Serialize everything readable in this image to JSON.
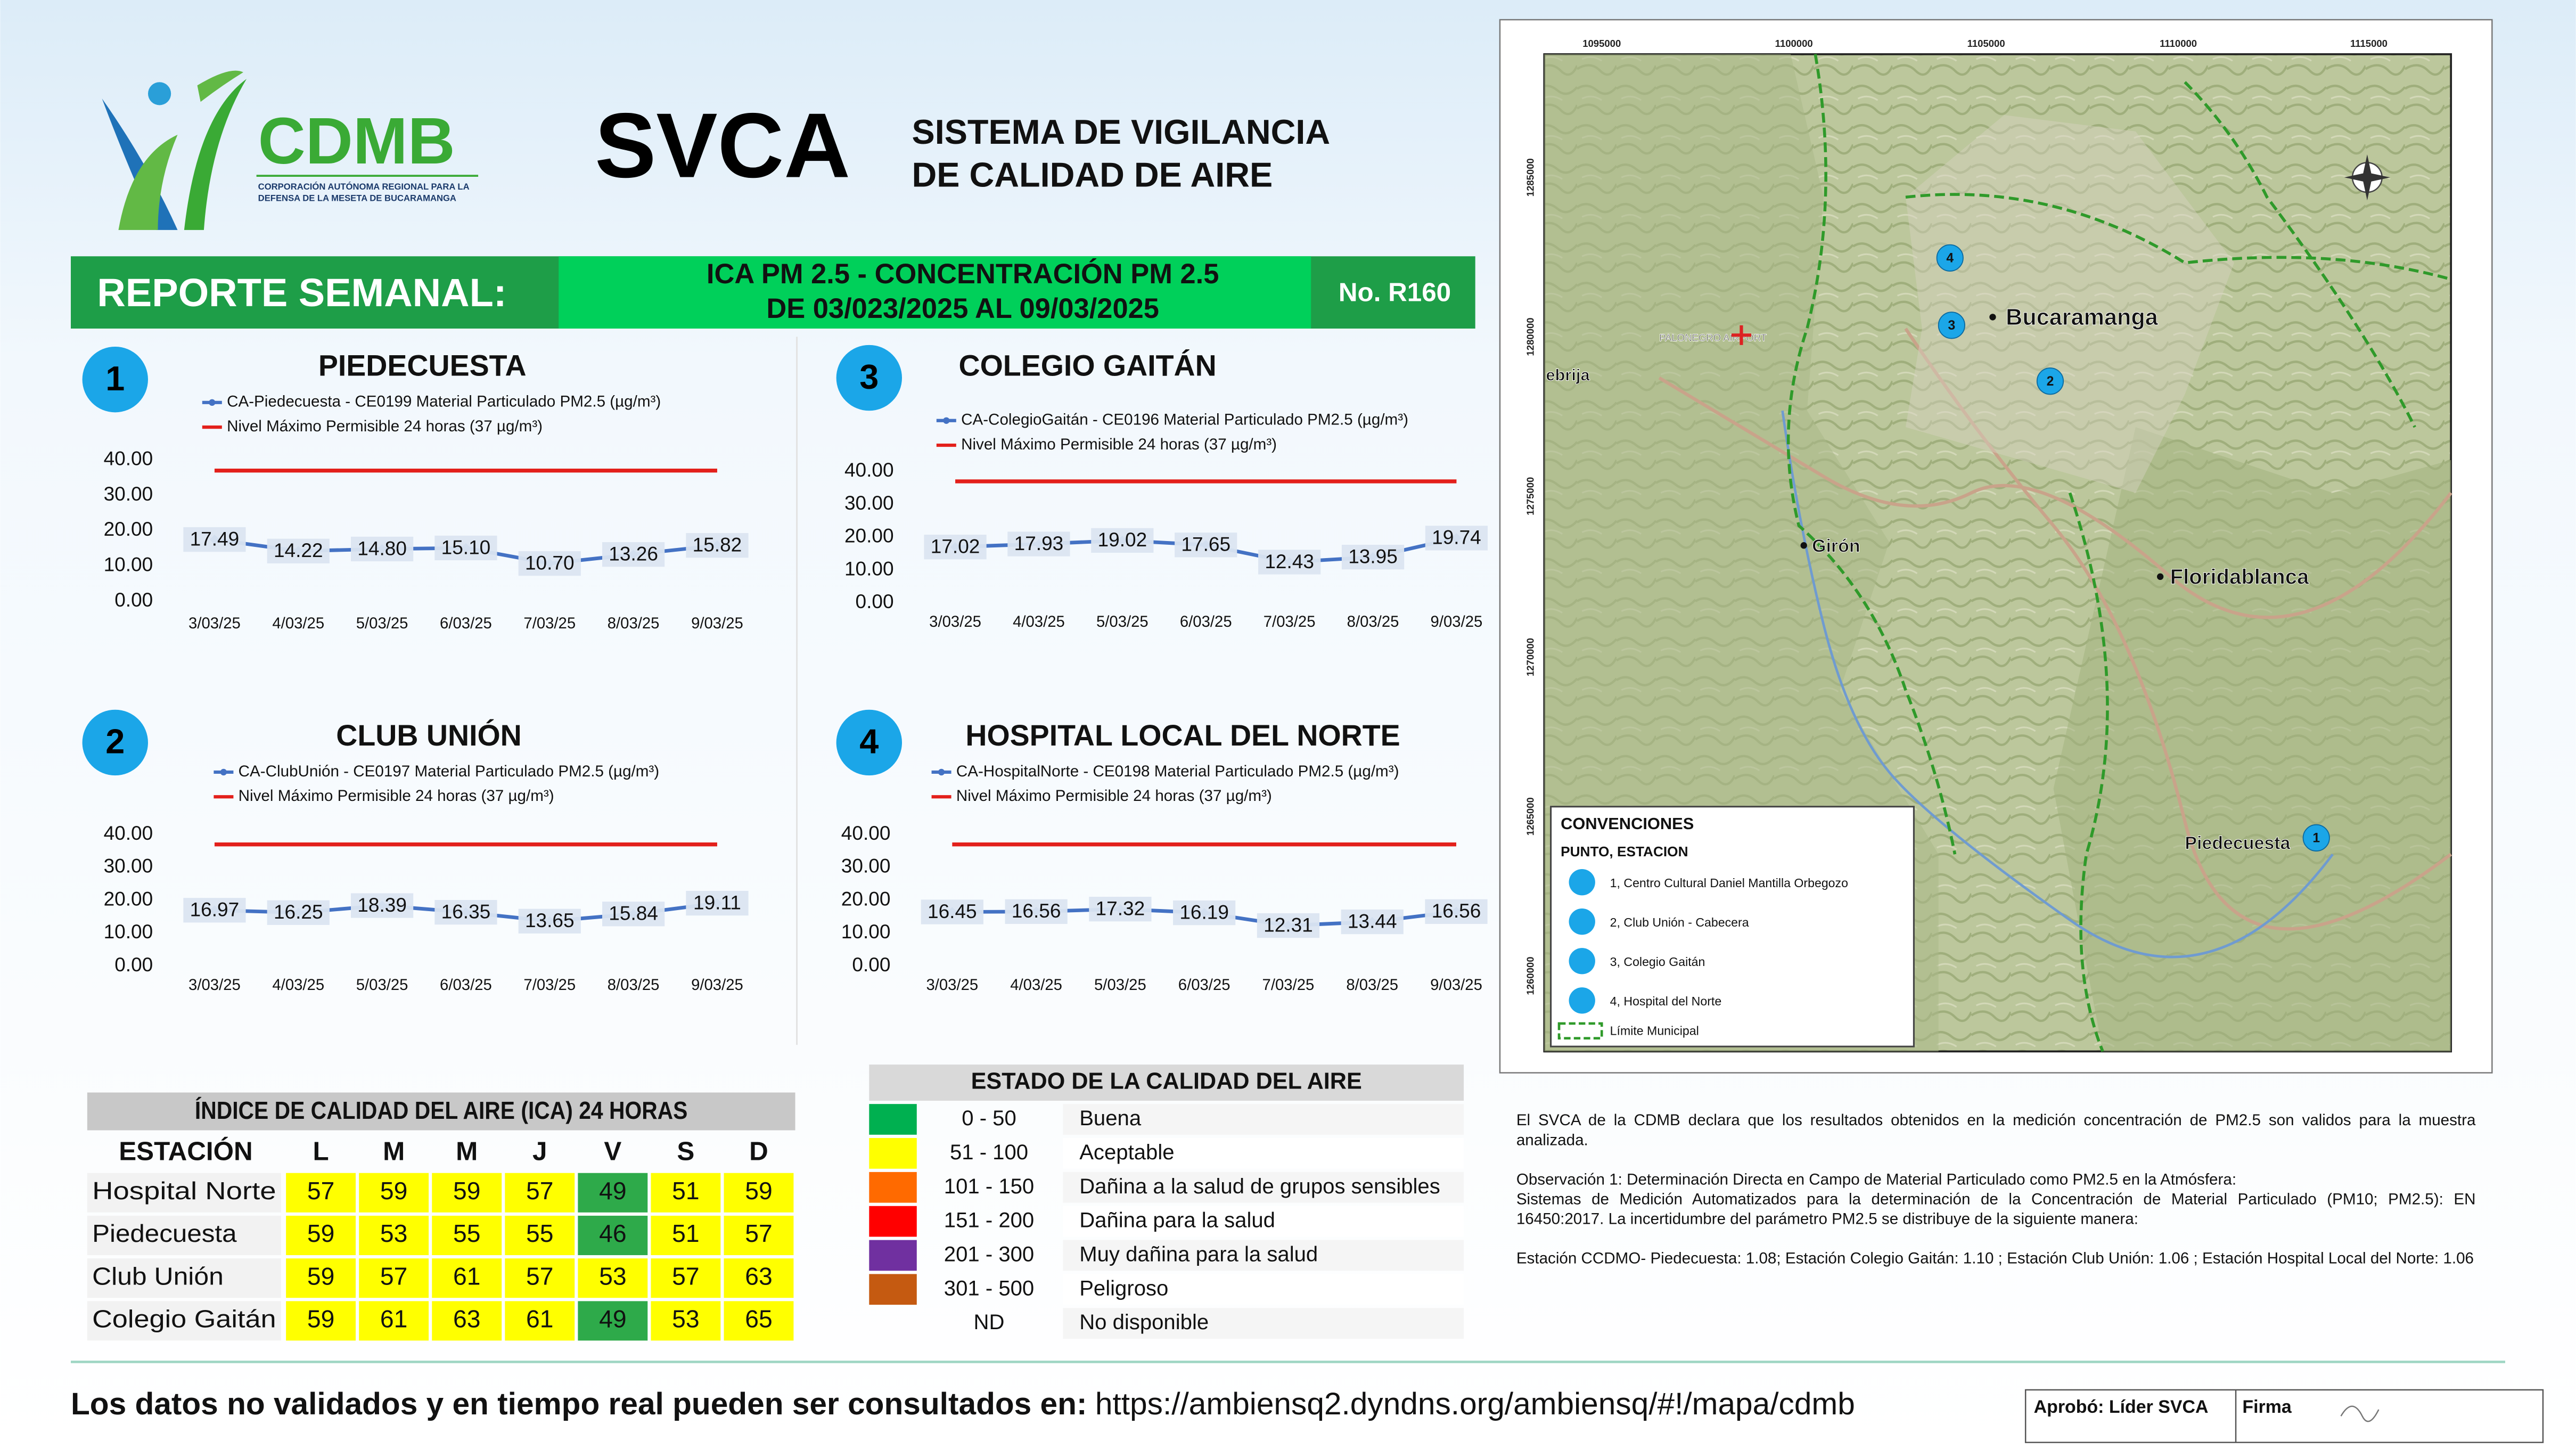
{
  "header": {
    "logo": "CDMB",
    "logo_subtitle": [
      "CORPORACIÓN AUTÓNOMA REGIONAL PARA LA",
      "DEFENSA DE LA MESETA DE BUCARAMANGA"
    ],
    "title": "SVCA",
    "subtitle": [
      "SISTEMA DE VIGILANCIA",
      "DE CALIDAD DE AIRE"
    ]
  },
  "banner": {
    "label": "REPORTE SEMANAL:",
    "lines": [
      "ICA PM 2.5 - CONCENTRACIÓN PM 2.5",
      "DE 03/023/2025 AL 09/03/2025"
    ],
    "number": "No. R160"
  },
  "chart_data": [
    {
      "type": "line",
      "badge": "1",
      "title": "PIEDECUESTA",
      "categories": [
        "3/03/25",
        "4/03/25",
        "5/03/25",
        "6/03/25",
        "7/03/25",
        "8/03/25",
        "9/03/25"
      ],
      "series": [
        {
          "name": "CA-Piedecuesta - CE0199 Material Particulado PM2.5 (µg/m³)",
          "color": "#4472c4",
          "markers": true,
          "data_labels": true,
          "values": [
            17.49,
            14.22,
            14.8,
            15.1,
            10.7,
            13.26,
            15.82
          ],
          "value_labels": [
            "17.49",
            "14.22",
            "14.80",
            "15.10",
            "10.70",
            "13.26",
            "15.82"
          ]
        },
        {
          "name": "Nivel Máximo Permisible 24 horas (37 µg/m³)",
          "color": "#e3201b",
          "values": [
            37,
            37,
            37,
            37,
            37,
            37,
            37
          ]
        }
      ],
      "ylim": [
        0,
        40
      ],
      "yticks": [
        {
          "value": 0,
          "label": "0.00"
        },
        {
          "value": 10,
          "label": "10.00"
        },
        {
          "value": 20,
          "label": "20.00"
        },
        {
          "value": 30,
          "label": "30.00"
        },
        {
          "value": 40,
          "label": "40.00"
        }
      ],
      "grid": false
    },
    {
      "type": "line",
      "badge": "2",
      "title": "CLUB UNIÓN",
      "categories": [
        "3/03/25",
        "4/03/25",
        "5/03/25",
        "6/03/25",
        "7/03/25",
        "8/03/25",
        "9/03/25"
      ],
      "series": [
        {
          "name": "CA-ClubUnión - CE0197 Material Particulado PM2.5 (µg/m³)",
          "color": "#4472c4",
          "markers": true,
          "data_labels": true,
          "values": [
            16.97,
            16.25,
            18.39,
            16.35,
            13.65,
            15.84,
            19.11
          ]
        },
        {
          "name": "Nivel Máximo Permisible 24 horas (37 µg/m³)",
          "color": "#e3201b",
          "values": [
            37,
            37,
            37,
            37,
            37,
            37,
            37
          ]
        }
      ],
      "ylim": [
        0,
        40
      ],
      "yticks": [
        {
          "value": 0,
          "label": "0.00"
        },
        {
          "value": 10,
          "label": "10.00"
        },
        {
          "value": 20,
          "label": "20.00"
        },
        {
          "value": 30,
          "label": "30.00"
        },
        {
          "value": 40,
          "label": "40.00"
        }
      ],
      "grid": false
    },
    {
      "type": "line",
      "badge": "3",
      "title": "COLEGIO GAITÁN",
      "categories": [
        "3/03/25",
        "4/03/25",
        "5/03/25",
        "6/03/25",
        "7/03/25",
        "8/03/25",
        "9/03/25"
      ],
      "series": [
        {
          "name": "CA-ColegioGaitán  - CE0196 Material Particulado PM2.5 (µg/m³)",
          "color": "#4472c4",
          "markers": true,
          "data_labels": true,
          "values": [
            17.02,
            17.93,
            19.02,
            17.65,
            12.43,
            13.95,
            19.74
          ]
        },
        {
          "name": "Nivel Máximo Permisible 24 horas (37 µg/m³)",
          "color": "#e3201b",
          "values": [
            37,
            37,
            37,
            37,
            37,
            37,
            37
          ]
        }
      ],
      "ylim": [
        0,
        40
      ],
      "yticks": [
        {
          "value": 0,
          "label": "0.00"
        },
        {
          "value": 10,
          "label": "10.00"
        },
        {
          "value": 20,
          "label": "20.00"
        },
        {
          "value": 30,
          "label": "30.00"
        },
        {
          "value": 40,
          "label": "40.00"
        }
      ],
      "grid": false
    },
    {
      "type": "line",
      "badge": "4",
      "title": "HOSPITAL LOCAL DEL NORTE",
      "categories": [
        "3/03/25",
        "4/03/25",
        "5/03/25",
        "6/03/25",
        "7/03/25",
        "8/03/25",
        "9/03/25"
      ],
      "series": [
        {
          "name": "CA-HospitalNorte - CE0198 Material Particulado PM2.5 (µg/m³)",
          "color": "#4472c4",
          "markers": true,
          "data_labels": true,
          "values": [
            16.45,
            16.56,
            17.32,
            16.19,
            12.31,
            13.44,
            16.56
          ]
        },
        {
          "name": "Nivel Máximo Permisible 24 horas (37 µg/m³)",
          "color": "#e3201b",
          "values": [
            37,
            37,
            37,
            37,
            37,
            37,
            37
          ]
        }
      ],
      "ylim": [
        0,
        40
      ],
      "yticks": [
        {
          "value": 0,
          "label": "0.00"
        },
        {
          "value": 10,
          "label": "10.00"
        },
        {
          "value": 20,
          "label": "20.00"
        },
        {
          "value": 30,
          "label": "30.00"
        },
        {
          "value": 40,
          "label": "40.00"
        }
      ],
      "grid": false
    }
  ],
  "ica_table": {
    "title": "ÍNDICE DE CALIDAD DEL AIRE (ICA) 24 HORAS",
    "header": [
      "ESTACIÓN",
      "L",
      "M",
      "M",
      "J",
      "V",
      "S",
      "D"
    ],
    "rows": [
      {
        "station": "Hospital Norte",
        "values": [
          57,
          59,
          59,
          57,
          49,
          51,
          59
        ],
        "colors": [
          "#ffff00",
          "#ffff00",
          "#ffff00",
          "#ffff00",
          "#2eaa4a",
          "#ffff00",
          "#ffff00"
        ]
      },
      {
        "station": "Piedecuesta",
        "values": [
          59,
          53,
          55,
          55,
          46,
          51,
          57
        ],
        "colors": [
          "#ffff00",
          "#ffff00",
          "#ffff00",
          "#ffff00",
          "#2eaa4a",
          "#ffff00",
          "#ffff00"
        ]
      },
      {
        "station": "Club Unión",
        "values": [
          59,
          57,
          61,
          57,
          53,
          57,
          63
        ],
        "colors": [
          "#ffff00",
          "#ffff00",
          "#ffff00",
          "#ffff00",
          "#ffff00",
          "#ffff00",
          "#ffff00"
        ]
      },
      {
        "station": "Colegio Gaitán",
        "values": [
          59,
          61,
          63,
          61,
          49,
          53,
          65
        ],
        "colors": [
          "#ffff00",
          "#ffff00",
          "#ffff00",
          "#ffff00",
          "#2eaa4a",
          "#ffff00",
          "#ffff00"
        ]
      }
    ]
  },
  "quality_legend": {
    "title": "ESTADO DE LA CALIDAD DEL AIRE",
    "rows": [
      {
        "color": "#00b050",
        "range": "0 - 50",
        "label": "Buena"
      },
      {
        "color": "#ffff00",
        "range": "51 - 100",
        "label": "Aceptable"
      },
      {
        "color": "#ff6a00",
        "range": "101 - 150",
        "label": "Dañina a la salud de grupos sensibles"
      },
      {
        "color": "#ff0000",
        "range": "151 - 200",
        "label": "Dañina para la salud"
      },
      {
        "color": "#7030a0",
        "range": "201 - 300",
        "label": "Muy dañina para la salud"
      },
      {
        "color": "#c55a11",
        "range": "301 - 500",
        "label": "Peligroso"
      },
      {
        "range": "ND",
        "label": "No disponible"
      }
    ]
  },
  "map": {
    "x_labels": [
      "1095000",
      "1100000",
      "1105000",
      "1110000",
      "1115000"
    ],
    "y_labels": [
      "1285000",
      "1280000",
      "1275000",
      "1270000",
      "1265000",
      "1260000"
    ],
    "places": [
      "ebrija",
      "PALONEGRO AIRPORT",
      "Bucaramanga",
      "Girón",
      "Floridablanca",
      "Piedecuesta"
    ],
    "station_markers": [
      "1",
      "2",
      "3",
      "4"
    ],
    "conventions": {
      "title": "CONVENCIONES",
      "subtitle": "PUNTO, ESTACION",
      "items": [
        "1, Centro Cultural Daniel Mantilla Orbegozo",
        "2, Club Unión - Cabecera",
        "3, Colegio Gaitán",
        "4, Hospital del Norte"
      ],
      "boundary": "Límite Municipal"
    }
  },
  "notes": [
    "El SVCA  de la CDMB declara que los resultados obtenidos en la medición concentración de PM2.5 son validos para la muestra  analizada.",
    "Observación 1: Determinación Directa en Campo de Material Particulado como PM2.5 en la Atmósfera:",
    "Sistemas de Medición Automatizados para la  determinación de la Concentración de Material Particulado (PM10; PM2.5): EN 16450:2017. La incertidumbre del parámetro PM2.5 se distribuye de la siguiente manera:",
    "Estación CCDMO- Piedecuesta: 1.08; Estación Colegio Gaitán: 1.10 ; Estación Club Unión: 1.06 ; Estación Hospital Local del Norte: 1.06"
  ],
  "footer": {
    "lead": "Los datos no validados y en tiempo real pueden ser consultados en:",
    "url": "https://ambiensq2.dyndns.org/ambiensq/#!/mapa/cdmb",
    "approved": "Aprobó: Líder SVCA",
    "signature": "Firma"
  }
}
